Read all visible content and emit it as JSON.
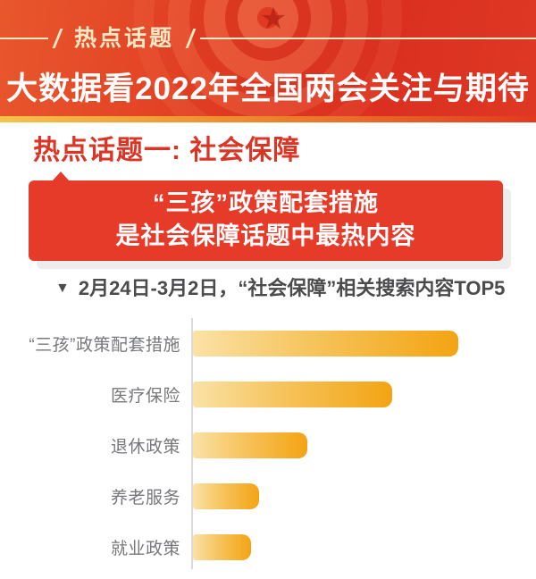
{
  "theme": {
    "header_red": "#E23F23",
    "badge_cream": "#F8E9C6",
    "stripe_gradient": [
      "#F6C24A",
      "#EE8B2C",
      "#E23A20"
    ],
    "heading_red": "#DB3526",
    "banner_red": "#E73B2A",
    "banner_shadow_gray": "#EDEDED",
    "bar_gradient_start": "#FAE2A6",
    "bar_gradient_end": "#F3A413",
    "bar_label_gray": "#77787B",
    "subtitle_gray": "#4B4B4D",
    "axis_gray": "#DBDBDB"
  },
  "header": {
    "star_icon": "★",
    "badge": "热点话题",
    "title": "大数据看2022年全国两会关注与期待"
  },
  "section": {
    "heading": "热点话题一: 社会保障",
    "banner_line1": "“三孩”政策配套措施",
    "banner_line2": "是社会保障话题中最热内容"
  },
  "chart": {
    "subtitle_marker": "▼",
    "subtitle": "2月24日-3月2日，“社会保障”相关搜索内容TOP5"
  },
  "chart_data": {
    "type": "bar",
    "orientation": "horizontal",
    "title": "2月24日-3月2日，“社会保障”相关搜索内容TOP5",
    "categories": [
      "“三孩”政策配套措施",
      "医疗保险",
      "退休政策",
      "养老服务",
      "就业政策"
    ],
    "values": [
      100,
      75,
      43,
      25,
      22
    ],
    "note": "no numeric labels shown; values estimated from bar lengths relative to longest bar = 100",
    "xlim": [
      0,
      100
    ],
    "grid": false,
    "legend": false
  }
}
